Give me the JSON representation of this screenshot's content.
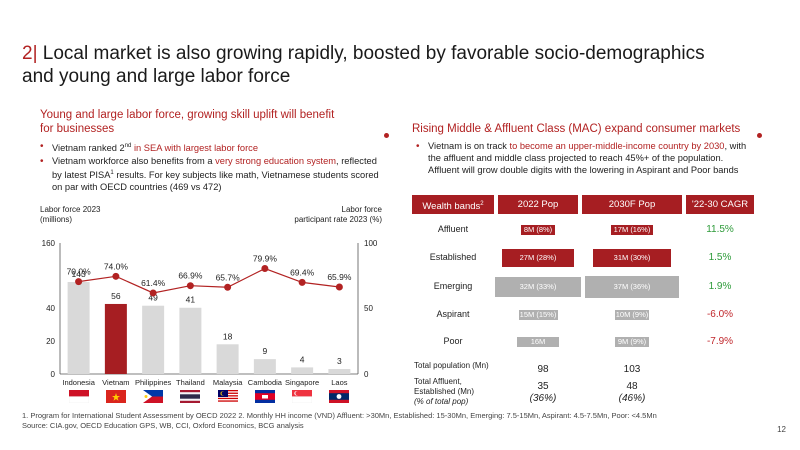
{
  "title": {
    "number": "2|",
    "text": "Local market is also growing rapidly, boosted by favorable socio-demographics and young and large labor force"
  },
  "left": {
    "subtitle": "Young and large labor force, growing skill uplift will benefit for businesses",
    "bullet1": {
      "pre": "Vietnam ranked 2",
      "sup": "nd",
      "highlight": " in SEA  with largest labor force"
    },
    "bullet2": {
      "pre": "Vietnam workforce also benefits from a ",
      "highlight": "very strong education system",
      "post": ", reflected by latest PISA",
      "sup": "1",
      "post2": " results. For key subjects like math, Vietnamese students scored on par with OECD countries (469 vs 472)"
    }
  },
  "chart_data": {
    "type": "bar",
    "categories": [
      "Indonesia",
      "Vietnam",
      "Philippines",
      "Thailand",
      "Malaysia",
      "Cambodia",
      "Singapore",
      "Laos"
    ],
    "series": [
      {
        "name": "Labor force 2023 (millions)",
        "type": "bar",
        "values": [
          143,
          56,
          49,
          41,
          18,
          9,
          4,
          3
        ],
        "labels": [
          "143",
          "56",
          "49",
          "41",
          "18",
          "9",
          "4",
          "3"
        ]
      },
      {
        "name": "Labor force participant rate 2023 (%)",
        "type": "line",
        "values": [
          70.0,
          74.0,
          61.4,
          66.9,
          65.7,
          79.9,
          69.4,
          65.9
        ],
        "labels": [
          "70.0%",
          "74.0%",
          "61.4%",
          "66.9%",
          "65.7%",
          "79.9%",
          "69.4%",
          "65.9%"
        ]
      }
    ],
    "ylabel_left": "Labor force 2023\n(millions)",
    "ylabel_right": "Labor force\nparticipant rate 2023 (%)",
    "y_left_ticks": [
      "160",
      "40",
      "20",
      "0"
    ],
    "y_right_ticks": [
      "100",
      "50",
      "0"
    ],
    "y_right_lim": [
      0,
      100
    ],
    "highlight_category": "Vietnam",
    "colors": {
      "bar": "#d9d9d9",
      "highlight": "#a61e22",
      "line": "#b22222"
    }
  },
  "right": {
    "subtitle": "Rising Middle & Affluent Class (MAC) expand consumer markets",
    "bullet1": {
      "pre": "Vietnam is on track ",
      "highlight": "to become an upper-middle-income country by 2030",
      "post": ", with the affluent and middle class projected to reach 45%+ of the population. Affluent will grow double digits with the lowering in Aspirant and Poor bands"
    },
    "table": {
      "headers": {
        "band": "Wealth bands",
        "band_sup": "2",
        "y2022": "2022 Pop",
        "y2030": "2030F Pop",
        "cagr": "'22-30 CAGR"
      },
      "rows": [
        {
          "band": "Affluent",
          "p2022": "8M (8%)",
          "p2030": "17M (16%)",
          "cagr": "11.5%",
          "share2022": 8,
          "share2030": 16,
          "color": "#a61e22",
          "cagr_color": "#2e9b3a"
        },
        {
          "band": "Established",
          "p2022": "27M (28%)",
          "p2030": "31M (30%)",
          "cagr": "1.5%",
          "share2022": 28,
          "share2030": 30,
          "color": "#a61e22",
          "cagr_color": "#2e9b3a"
        },
        {
          "band": "Emerging",
          "p2022": "32M (33%)",
          "p2030": "37M (36%)",
          "cagr": "1.9%",
          "share2022": 33,
          "share2030": 36,
          "color": "#b0b0b0",
          "cagr_color": "#2e9b3a"
        },
        {
          "band": "Aspirant",
          "p2022": "15M (15%)",
          "p2030": "10M (9%)",
          "cagr": "-6.0%",
          "share2022": 15,
          "share2030": 9,
          "color": "#b0b0b0",
          "cagr_color": "#c0262b"
        },
        {
          "band": "Poor",
          "p2022": "16M (16%)%",
          "p2030": "9M (9%)",
          "cagr": "-7.9%",
          "share2022": 16,
          "share2030": 9,
          "color": "#b0b0b0",
          "cagr_color": "#c0262b"
        }
      ],
      "total_label": "Total population (Mn)",
      "total_2022": "98",
      "total_2030": "103",
      "mac_label1": "Total Affluent,",
      "mac_label2": "Established (Mn)",
      "mac_label3": "(% of total pop)",
      "mac_2022": "35",
      "mac_2022_pct": "(36%)",
      "mac_2030": "48",
      "mac_2030_pct": "(46%)"
    }
  },
  "footnote1": "1. Program for International Student Assessment by OECD 2022 2. Monthly HH income (VND) Affluent: >30Mn, Established: 15-30Mn, Emerging: 7.5-15Mn, Aspirant: 4.5-7.5Mn, Poor: <4.5Mn",
  "footnote2": "Source: CIA.gov, OECD Education GPS, WB, CCI, Oxford Economics, BCG analysis",
  "page_number": "12",
  "flags": [
    "indonesia-flag",
    "vietnam-flag",
    "philippines-flag",
    "thailand-flag",
    "malaysia-flag",
    "cambodia-flag",
    "singapore-flag",
    "laos-flag"
  ]
}
